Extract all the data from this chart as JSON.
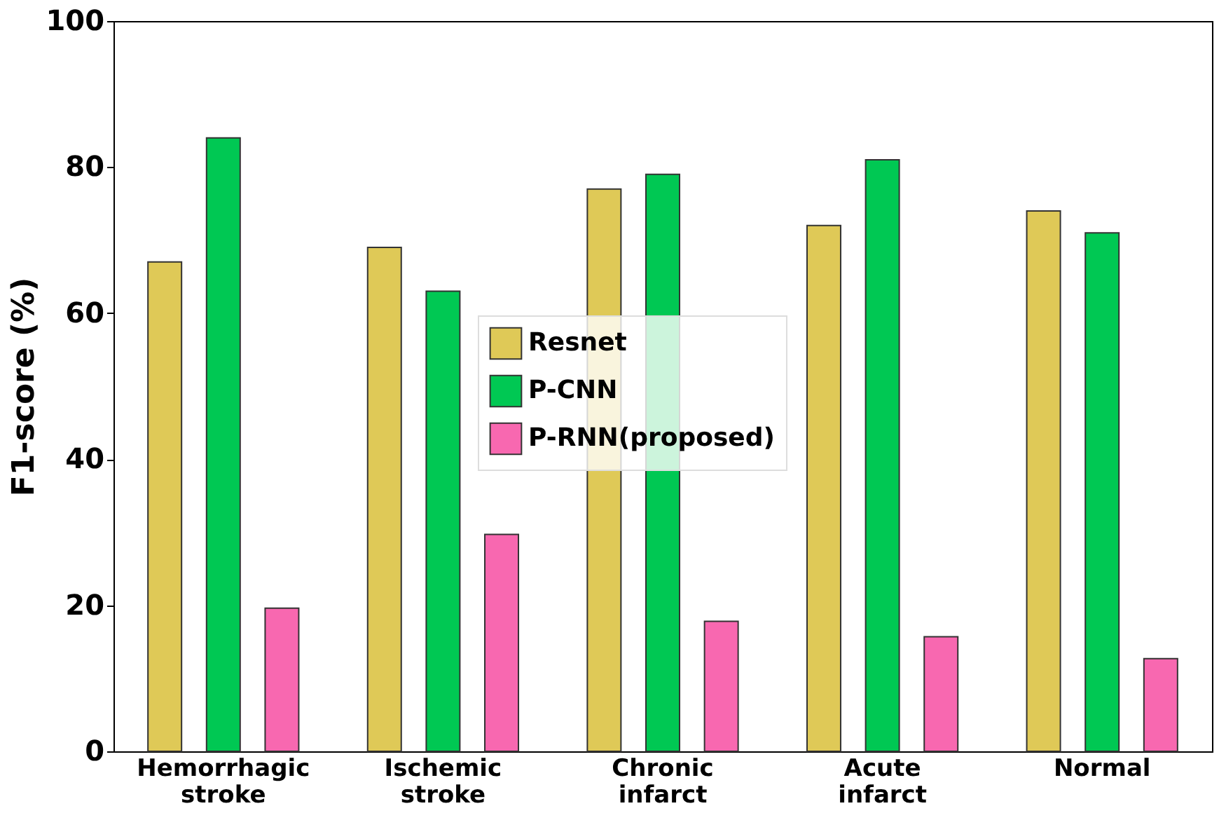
{
  "chart_data": {
    "type": "bar",
    "ylabel": "F1-score (%)",
    "categories": [
      "Hemorrhagic stroke",
      "Ischemic stroke",
      "Chronic infarct",
      "Acute infarct",
      "Normal"
    ],
    "series": [
      {
        "name": "Resnet",
        "color": "#dfc957",
        "values": [
          67,
          69,
          77,
          72,
          74
        ]
      },
      {
        "name": "P-CNN",
        "color": "#00c853",
        "values": [
          84,
          63,
          79,
          81,
          71
        ]
      },
      {
        "name": "P-RNN(proposed)",
        "color": "#f868b0",
        "values": [
          19.6,
          29.7,
          17.8,
          15.7,
          12.7
        ]
      }
    ],
    "ylim": [
      0,
      100
    ],
    "yticks": [
      0,
      20,
      40,
      60,
      80,
      100
    ],
    "grid": false,
    "legend": "center"
  }
}
